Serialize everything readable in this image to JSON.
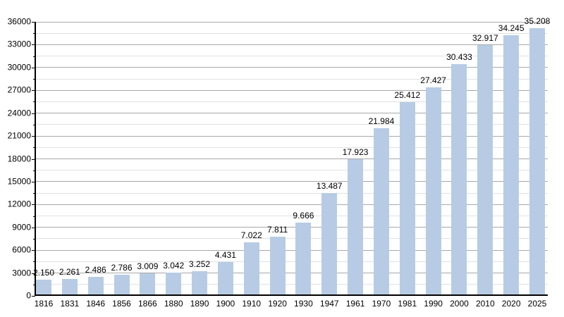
{
  "chart_data": {
    "type": "bar",
    "title": "",
    "xlabel": "",
    "ylabel": "",
    "categories": [
      "1816",
      "1831",
      "1846",
      "1856",
      "1866",
      "1880",
      "1890",
      "1900",
      "1910",
      "1920",
      "1930",
      "1947",
      "1961",
      "1970",
      "1981",
      "1990",
      "2000",
      "2010",
      "2020",
      "2025"
    ],
    "values": [
      2150,
      2261,
      2486,
      2786,
      3009,
      3042,
      3252,
      4431,
      7022,
      7811,
      9666,
      13487,
      17923,
      21984,
      25412,
      27427,
      30433,
      32917,
      34245,
      35208
    ],
    "value_labels": [
      "2.150",
      "2.261",
      "2.486",
      "2.786",
      "3.009",
      "3.042",
      "3.252",
      "4.431",
      "7.022",
      "7.811",
      "9.666",
      "13.487",
      "17.923",
      "21.984",
      "25.412",
      "27.427",
      "30.433",
      "32.917",
      "34.245",
      "35.208"
    ],
    "ylim": [
      0,
      36000
    ],
    "y_major_step": 3000,
    "y_minor_step": 1500,
    "y_tick_labels": [
      "0",
      "3000",
      "6000",
      "9000",
      "12000",
      "15000",
      "18000",
      "21000",
      "24000",
      "27000",
      "30000",
      "33000",
      "36000"
    ],
    "grid": "on",
    "legend": "none",
    "colors": {
      "bar_fill": "#b7cce4",
      "major_gridline": "#a8a8a8",
      "minor_gridline": "#e1e1e1",
      "axis": "#000000",
      "text": "#000000",
      "background": "#ffffff"
    }
  }
}
